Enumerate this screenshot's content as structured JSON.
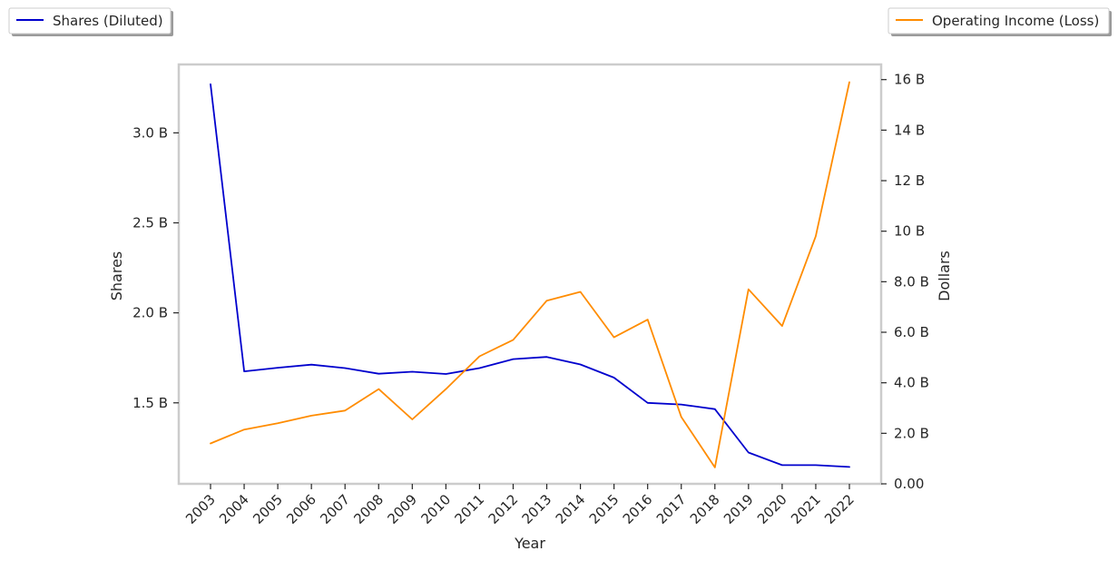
{
  "chart_data": {
    "type": "line",
    "x": [
      "2003",
      "2004",
      "2005",
      "2006",
      "2007",
      "2008",
      "2009",
      "2010",
      "2011",
      "2012",
      "2013",
      "2014",
      "2015",
      "2016",
      "2017",
      "2018",
      "2019",
      "2020",
      "2021",
      "2022"
    ],
    "xlabel": "Year",
    "series": [
      {
        "name": "Shares (Diluted)",
        "axis": "left",
        "color": "#0000cd",
        "values": [
          3.27,
          1.675,
          1.695,
          1.712,
          1.693,
          1.662,
          1.673,
          1.66,
          1.693,
          1.743,
          1.755,
          1.713,
          1.64,
          1.5,
          1.491,
          1.465,
          1.224,
          1.154,
          1.154,
          1.144
        ]
      },
      {
        "name": "Operating Income (Loss)",
        "axis": "right",
        "color": "#ff8c00",
        "values": [
          1.6,
          2.15,
          2.4,
          2.7,
          2.9,
          3.75,
          2.55,
          3.75,
          5.05,
          5.7,
          7.25,
          7.6,
          5.8,
          6.5,
          2.65,
          0.65,
          7.7,
          6.25,
          9.8,
          15.9
        ]
      }
    ],
    "y_left": {
      "label": "Shares",
      "ylim": [
        1.05,
        3.38
      ],
      "ticks": [
        1.5,
        2.0,
        2.5,
        3.0
      ],
      "tick_labels": [
        "1.5 B",
        "2.0 B",
        "2.5 B",
        "3.0 B"
      ]
    },
    "y_right": {
      "label": "Dollars",
      "ylim": [
        0,
        16.6
      ],
      "ticks": [
        0,
        2,
        4,
        6,
        8,
        10,
        12,
        14,
        16
      ],
      "tick_labels": [
        "0.00",
        "2.0 B",
        "4.0 B",
        "6.0 B",
        "8.0 B",
        "10 B",
        "12 B",
        "14 B",
        "16 B"
      ]
    },
    "grid": false,
    "legend_left": "top-left",
    "legend_right": "top-right"
  }
}
